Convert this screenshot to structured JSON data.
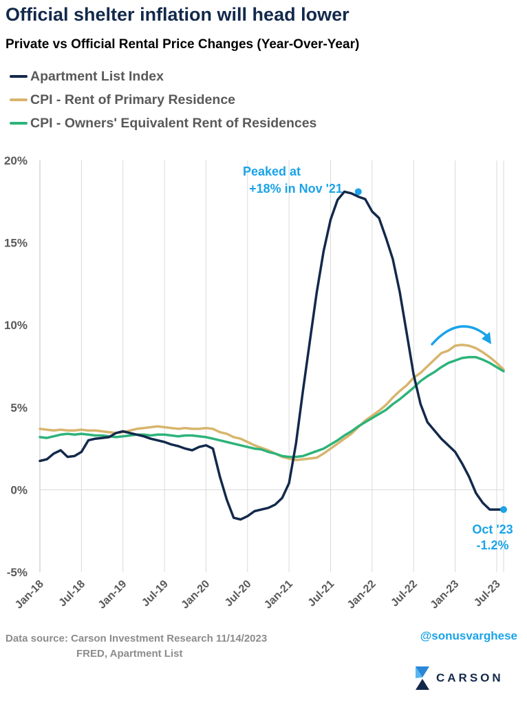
{
  "title": "Official shelter inflation will head lower",
  "subtitle": "Private vs Official Rental Price Changes (Year-Over-Year)",
  "legend": [
    {
      "label": "Apartment List Index",
      "color": "#13294b"
    },
    {
      "label": "CPI - Rent of Primary Residence",
      "color": "#d7b56d"
    },
    {
      "label": "CPI - Owners' Equivalent Rent of Residences",
      "color": "#2db37a"
    }
  ],
  "footer": {
    "source_line1": "Data source: Carson Investment Research   11/14/2023",
    "source_line2": "FRED, Apartment List",
    "handle": "@sonusvarghese",
    "logo_text": "CARSON"
  },
  "annotations": {
    "peak_line1": "Peaked at",
    "peak_line2": "+18% in Nov '21",
    "end_line1": "Oct '23",
    "end_line2": "-1.2%",
    "color": "#1aa3e8"
  },
  "chart_data": {
    "type": "line",
    "title": "Private vs Official Rental Price Changes (Year-Over-Year)",
    "ylim": [
      -5,
      20
    ],
    "y_ticks": [
      -5,
      0,
      5,
      10,
      15,
      20
    ],
    "y_tick_labels": [
      "-5%",
      "0%",
      "5%",
      "10%",
      "15%",
      "20%"
    ],
    "x_tick_labels": [
      "Jan-18",
      "Jul-18",
      "Jan-19",
      "Jul-19",
      "Jan-20",
      "Jul-20",
      "Jan-21",
      "Jul-21",
      "Jan-22",
      "Jul-22",
      "Jan-23",
      "Jul-23"
    ],
    "x_start": "Jan-18",
    "x_end": "Oct-23",
    "grid": "vertical",
    "legend_position": "top-left",
    "series": [
      {
        "name": "Apartment List Index",
        "color": "#13294b",
        "values": [
          1.75,
          1.85,
          2.2,
          2.4,
          2.0,
          2.05,
          2.3,
          3.0,
          3.1,
          3.15,
          3.2,
          3.45,
          3.55,
          3.45,
          3.35,
          3.25,
          3.1,
          3.0,
          2.9,
          2.75,
          2.65,
          2.5,
          2.4,
          2.6,
          2.7,
          2.5,
          0.8,
          -0.6,
          -1.7,
          -1.8,
          -1.6,
          -1.3,
          -1.2,
          -1.1,
          -0.9,
          -0.5,
          0.4,
          2.8,
          6.0,
          9.0,
          12.0,
          14.5,
          16.4,
          17.6,
          18.1,
          18.0,
          17.8,
          17.65,
          16.9,
          16.5,
          15.3,
          14.0,
          12.0,
          9.5,
          7.0,
          5.2,
          4.1,
          3.6,
          3.1,
          2.7,
          2.3,
          1.6,
          0.8,
          -0.2,
          -0.8,
          -1.2,
          -1.2,
          -1.2
        ]
      },
      {
        "name": "CPI - Rent of Primary Residence",
        "color": "#d7b56d",
        "values": [
          3.7,
          3.65,
          3.6,
          3.65,
          3.6,
          3.6,
          3.65,
          3.6,
          3.6,
          3.55,
          3.5,
          3.45,
          3.5,
          3.6,
          3.7,
          3.75,
          3.8,
          3.85,
          3.8,
          3.75,
          3.7,
          3.75,
          3.7,
          3.7,
          3.75,
          3.7,
          3.5,
          3.4,
          3.2,
          3.1,
          2.9,
          2.7,
          2.55,
          2.4,
          2.2,
          2.0,
          1.9,
          1.8,
          1.85,
          1.9,
          1.95,
          2.2,
          2.5,
          2.8,
          3.1,
          3.4,
          3.8,
          4.2,
          4.5,
          4.8,
          5.15,
          5.6,
          6.0,
          6.35,
          6.8,
          7.1,
          7.5,
          7.9,
          8.3,
          8.45,
          8.75,
          8.8,
          8.75,
          8.6,
          8.35,
          8.05,
          7.7,
          7.3
        ]
      },
      {
        "name": "CPI - Owners' Equivalent Rent of Residences",
        "color": "#2db37a",
        "values": [
          3.2,
          3.15,
          3.25,
          3.35,
          3.4,
          3.35,
          3.4,
          3.35,
          3.3,
          3.3,
          3.25,
          3.2,
          3.25,
          3.3,
          3.35,
          3.35,
          3.3,
          3.35,
          3.35,
          3.3,
          3.25,
          3.3,
          3.3,
          3.25,
          3.2,
          3.1,
          3.0,
          2.9,
          2.8,
          2.7,
          2.6,
          2.5,
          2.45,
          2.3,
          2.2,
          2.05,
          2.0,
          2.0,
          2.05,
          2.2,
          2.35,
          2.5,
          2.75,
          3.0,
          3.3,
          3.55,
          3.85,
          4.1,
          4.35,
          4.6,
          4.85,
          5.2,
          5.5,
          5.85,
          6.2,
          6.6,
          6.9,
          7.15,
          7.45,
          7.7,
          7.85,
          8.0,
          8.05,
          8.05,
          7.9,
          7.7,
          7.45,
          7.2
        ]
      }
    ]
  }
}
